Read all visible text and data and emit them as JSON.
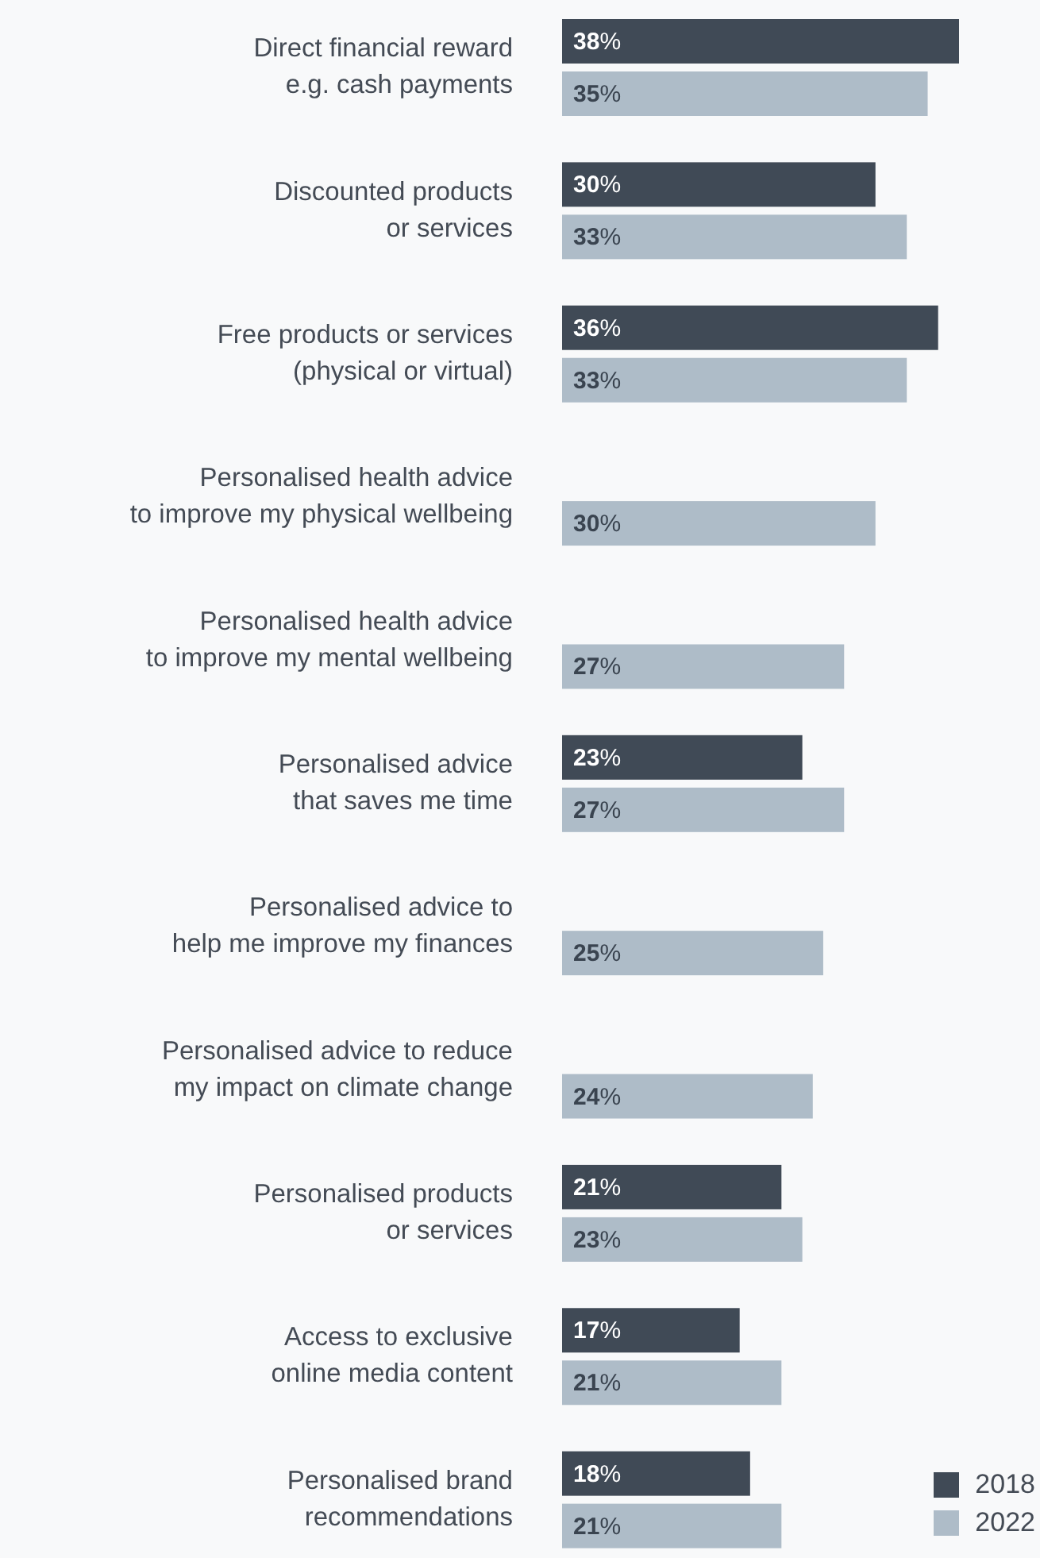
{
  "chart_data": {
    "type": "bar",
    "orientation": "horizontal",
    "categories": [
      "Direct financial reward\ne.g. cash payments",
      "Discounted products\nor services",
      "Free products or services\n(physical or virtual)",
      "Personalised health advice\nto improve my physical wellbeing",
      "Personalised health advice\nto improve my mental wellbeing",
      "Personalised advice\nthat saves me time",
      "Personalised advice to\nhelp me improve my finances",
      "Personalised advice to reduce\nmy impact on climate change",
      "Personalised products\nor services",
      "Access to exclusive\nonline media content",
      "Personalised brand\nrecommendations"
    ],
    "series": [
      {
        "name": "2018",
        "color": "#404a56",
        "values": [
          38,
          30,
          36,
          null,
          null,
          23,
          null,
          null,
          21,
          17,
          18
        ],
        "value_labels": [
          "38%",
          "30%",
          "36%",
          null,
          null,
          "23%",
          null,
          null,
          "21%",
          "17%",
          "18%"
        ]
      },
      {
        "name": "2022",
        "color": "#aebcc8",
        "values": [
          35,
          33,
          33,
          30,
          27,
          27,
          25,
          24,
          23,
          21,
          21
        ],
        "value_labels": [
          "35%",
          "33%",
          "33%",
          "30%",
          "27%",
          "27%",
          "25%",
          "24%",
          "23%",
          "21%",
          "21%"
        ]
      }
    ],
    "legend": "bottom right",
    "grid": false
  }
}
